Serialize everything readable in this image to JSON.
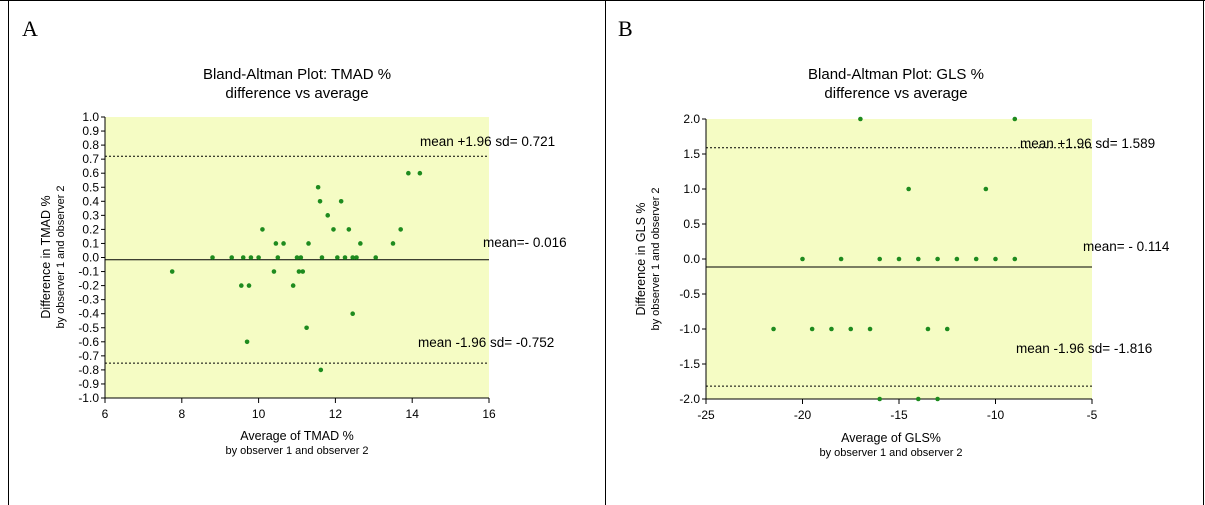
{
  "colors": {
    "plot_background": "#F5FCC4",
    "point": "#1E8B1E",
    "mean_line": "#000000",
    "limit_line": "#000000"
  },
  "chart_data": [
    {
      "panel_label": "A",
      "type": "scatter",
      "title": "Bland-Altman Plot: TMAD %",
      "subtitle": "difference vs average",
      "xlabel": "Average of TMAD %",
      "xlabel_sub": "by observer 1 and observer 2",
      "ylabel": "Difference in TMAD %",
      "ylabel_sub": "by observer 1 and observer 2",
      "xlim": [
        6,
        16
      ],
      "ylim": [
        -1.0,
        1.0
      ],
      "x_ticks": [
        "6",
        "8",
        "10",
        "12",
        "14",
        "16"
      ],
      "y_ticks": [
        "1.0",
        "0.9",
        "0.8",
        "0.7",
        "0.6",
        "0.5",
        "0.4",
        "0.3",
        "0.2",
        "0.1",
        "0.0",
        "-0.1",
        "-0.2",
        "-0.3",
        "-0.4",
        "-0.5",
        "-0.6",
        "-0.7",
        "-0.8",
        "-0.9",
        "-1.0"
      ],
      "mean": -0.016,
      "upper_limit": 0.721,
      "lower_limit": -0.752,
      "mean_label": "mean=- 0.016",
      "upper_label": "mean +1.96 sd= 0.721",
      "lower_label": "mean -1.96 sd= -0.752",
      "points": [
        {
          "x": 7.75,
          "y": -0.1
        },
        {
          "x": 8.8,
          "y": 0.0
        },
        {
          "x": 9.3,
          "y": 0.0
        },
        {
          "x": 9.55,
          "y": -0.2
        },
        {
          "x": 9.6,
          "y": 0.0
        },
        {
          "x": 9.7,
          "y": -0.6
        },
        {
          "x": 9.75,
          "y": -0.2
        },
        {
          "x": 9.8,
          "y": 0.0
        },
        {
          "x": 10.0,
          "y": 0.0
        },
        {
          "x": 10.1,
          "y": 0.2
        },
        {
          "x": 10.4,
          "y": -0.1
        },
        {
          "x": 10.45,
          "y": 0.1
        },
        {
          "x": 10.5,
          "y": 0.0
        },
        {
          "x": 10.65,
          "y": 0.1
        },
        {
          "x": 10.9,
          "y": -0.2
        },
        {
          "x": 11.0,
          "y": 0.0
        },
        {
          "x": 11.05,
          "y": -0.1
        },
        {
          "x": 11.1,
          "y": 0.0
        },
        {
          "x": 11.15,
          "y": -0.1
        },
        {
          "x": 11.25,
          "y": -0.5
        },
        {
          "x": 11.3,
          "y": 0.1
        },
        {
          "x": 11.55,
          "y": 0.5
        },
        {
          "x": 11.6,
          "y": 0.4
        },
        {
          "x": 11.62,
          "y": -0.8
        },
        {
          "x": 11.65,
          "y": 0.0
        },
        {
          "x": 11.8,
          "y": 0.3
        },
        {
          "x": 11.95,
          "y": 0.2
        },
        {
          "x": 12.05,
          "y": 0.0
        },
        {
          "x": 12.15,
          "y": 0.4
        },
        {
          "x": 12.25,
          "y": 0.0
        },
        {
          "x": 12.35,
          "y": 0.2
        },
        {
          "x": 12.45,
          "y": -0.4
        },
        {
          "x": 12.45,
          "y": 0.0
        },
        {
          "x": 12.55,
          "y": 0.0
        },
        {
          "x": 12.65,
          "y": 0.1
        },
        {
          "x": 13.05,
          "y": 0.0
        },
        {
          "x": 13.5,
          "y": 0.1
        },
        {
          "x": 13.7,
          "y": 0.2
        },
        {
          "x": 13.9,
          "y": 0.6
        },
        {
          "x": 14.2,
          "y": 0.6
        }
      ]
    },
    {
      "panel_label": "B",
      "type": "scatter",
      "title": "Bland-Altman Plot: GLS %",
      "subtitle": "difference vs average",
      "xlabel": "Average of GLS%",
      "xlabel_sub": "by observer 1 and observer 2",
      "ylabel": "Difference in GLS %",
      "ylabel_sub": "by observer 1 and observer 2",
      "xlim": [
        -25,
        -5
      ],
      "ylim": [
        -2.0,
        2.0
      ],
      "x_ticks": [
        "-25",
        "-20",
        "-15",
        "-10",
        "-5"
      ],
      "y_ticks": [
        "2.0",
        "1.5",
        "1.0",
        "0.5",
        "0.0",
        "-0.5",
        "-1.0",
        "-1.5",
        "-2.0"
      ],
      "mean": -0.114,
      "upper_limit": 1.589,
      "lower_limit": -1.816,
      "mean_label": "mean= - 0.114",
      "upper_label": "mean +1.96 sd= 1.589",
      "lower_label": "mean -1.96 sd= -1.816",
      "points": [
        {
          "x": -21.5,
          "y": -1.0
        },
        {
          "x": -20.0,
          "y": 0.0
        },
        {
          "x": -19.5,
          "y": -1.0
        },
        {
          "x": -18.5,
          "y": -1.0
        },
        {
          "x": -18.0,
          "y": 0.0
        },
        {
          "x": -17.5,
          "y": -1.0
        },
        {
          "x": -17.0,
          "y": 2.0
        },
        {
          "x": -16.5,
          "y": -1.0
        },
        {
          "x": -16.0,
          "y": 0.0
        },
        {
          "x": -16.0,
          "y": -2.0
        },
        {
          "x": -15.0,
          "y": 0.0
        },
        {
          "x": -14.5,
          "y": 1.0
        },
        {
          "x": -14.0,
          "y": 0.0
        },
        {
          "x": -14.0,
          "y": -2.0
        },
        {
          "x": -13.5,
          "y": -1.0
        },
        {
          "x": -13.0,
          "y": 0.0
        },
        {
          "x": -13.0,
          "y": -2.0
        },
        {
          "x": -12.5,
          "y": -1.0
        },
        {
          "x": -12.0,
          "y": 0.0
        },
        {
          "x": -11.0,
          "y": 0.0
        },
        {
          "x": -10.5,
          "y": 1.0
        },
        {
          "x": -10.0,
          "y": 0.0
        },
        {
          "x": -9.0,
          "y": 2.0
        },
        {
          "x": -9.0,
          "y": 0.0
        }
      ]
    }
  ]
}
